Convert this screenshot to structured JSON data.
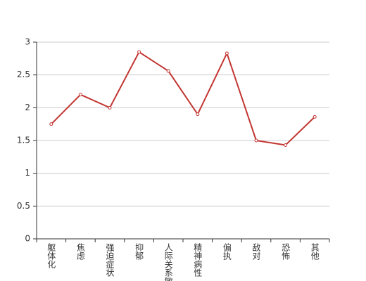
{
  "chart_data": {
    "type": "line",
    "categories": [
      "躯体化",
      "焦虑",
      "强迫症状",
      "抑郁",
      "人际关系敏感",
      "精神病性",
      "偏执",
      "敌对",
      "恐怖",
      "其他"
    ],
    "series": [
      {
        "color": "#c23531",
        "values": [
          1.75,
          2.2,
          2.0,
          2.85,
          2.56,
          1.9,
          2.83,
          1.5,
          1.43,
          1.86
        ]
      }
    ],
    "ylim": [
      0,
      3
    ],
    "yticks": [
      0,
      0.5,
      1,
      1.5,
      2,
      2.5,
      3
    ],
    "grid": true
  }
}
